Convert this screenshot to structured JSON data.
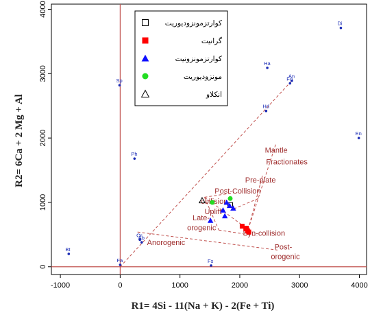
{
  "chart_data": {
    "type": "scatter",
    "xlabel": "R1= 4Si - 11(Na + K) - 2(Fe + Ti)",
    "ylabel": "R2= 6Ca + 2 Mg + Al",
    "xlim": [
      -1150,
      4120
    ],
    "ylim": [
      -120,
      4080
    ],
    "x_ticks": [
      -1000,
      0,
      1000,
      2000,
      3000,
      4000
    ],
    "y_ticks": [
      0,
      1000,
      2000,
      3000,
      4000
    ],
    "x_tick_labels": [
      "-1000",
      "0",
      "1000",
      "2000",
      "3000",
      "4000"
    ],
    "y_tick_labels": [
      "0",
      "1000",
      "2000",
      "3000",
      "4000"
    ],
    "colors": {
      "axis_lines": "#c0504d",
      "region_lines": "#c0504d",
      "reference_points": "#1a2bb5",
      "granite": "#ff0000",
      "quartz_monzonite": "#1010ff",
      "monzodiorite": "#22dd22",
      "region_text": "#a03030"
    },
    "legend": {
      "placement": "top-center",
      "entries": [
        {
          "label": "کوارتزمونزودیوریت",
          "marker": "open-square"
        },
        {
          "label": "گرانیت",
          "marker": "filled-square-red"
        },
        {
          "label": "کوارتزمونزونیت",
          "marker": "filled-triangle-blue"
        },
        {
          "label": "مونزودیوریت",
          "marker": "filled-circle-green"
        },
        {
          "label": "انکلاو",
          "marker": "open-triangle"
        }
      ]
    },
    "reference_points": [
      {
        "label": "Di",
        "x": 3690,
        "y": 3710
      },
      {
        "label": "Ha",
        "x": 2460,
        "y": 3090
      },
      {
        "label": "An",
        "x": 2870,
        "y": 2890
      },
      {
        "label": "Fo",
        "x": 2840,
        "y": 2850
      },
      {
        "label": "Sp",
        "x": -10,
        "y": 2820
      },
      {
        "label": "Hd",
        "x": 2440,
        "y": 2420
      },
      {
        "label": "En",
        "x": 3990,
        "y": 2000
      },
      {
        "label": "Ph",
        "x": 240,
        "y": 1680
      },
      {
        "label": "Ab",
        "x": 360,
        "y": 380
      },
      {
        "label": "Or",
        "x": 330,
        "y": 420
      },
      {
        "label": "Bt",
        "x": -860,
        "y": 200
      },
      {
        "label": "Fa",
        "x": 0,
        "y": 30
      },
      {
        "label": "Fs",
        "x": 1520,
        "y": 20
      }
    ],
    "region_labels": [
      {
        "text": "Mantle",
        "x": 2420,
        "y": 1770
      },
      {
        "text": "Fractionates",
        "x": 2440,
        "y": 1590
      },
      {
        "text": "Pre-plate",
        "x": 2090,
        "y": 1310
      },
      {
        "text": "Post-Collision",
        "x": 1580,
        "y": 1140
      },
      {
        "text": "collision",
        "x": 1350,
        "y": 980
      },
      {
        "text": "Uplift",
        "x": 1410,
        "y": 820
      },
      {
        "text": "Late-",
        "x": 1210,
        "y": 720
      },
      {
        "text": "orogenic",
        "x": 1120,
        "y": 570
      },
      {
        "text": "Syn-collision",
        "x": 2050,
        "y": 480
      },
      {
        "text": "Anorogenic",
        "x": 450,
        "y": 340
      },
      {
        "text": "Post-",
        "x": 2580,
        "y": 270
      },
      {
        "text": "orogenic",
        "x": 2520,
        "y": 120
      }
    ],
    "region_boundaries": [
      [
        [
          0,
          0
        ],
        [
          2860,
          2880
        ]
      ],
      [
        [
          290,
          540
        ],
        [
          2630,
          260
        ]
      ],
      [
        [
          2140,
          580
        ],
        [
          2600,
          1900
        ]
      ],
      [
        [
          2140,
          580
        ],
        [
          2380,
          1420
        ]
      ],
      [
        [
          1900,
          900
        ],
        [
          2310,
          1060
        ]
      ],
      [
        [
          1410,
          1080
        ],
        [
          2140,
          580
        ]
      ],
      [
        [
          1410,
          1080
        ],
        [
          1650,
          570
        ]
      ],
      [
        [
          1650,
          570
        ],
        [
          2290,
          480
        ]
      ],
      [
        [
          1410,
          1080
        ],
        [
          1900,
          1150
        ]
      ]
    ],
    "series": [
      {
        "name": "کوارتزمونزودیوریت",
        "marker": "open-square",
        "points": [
          {
            "x": 1840,
            "y": 960
          }
        ]
      },
      {
        "name": "گرانیت",
        "marker": "filled-square-red",
        "points": [
          {
            "x": 2040,
            "y": 630
          },
          {
            "x": 2100,
            "y": 590
          },
          {
            "x": 2130,
            "y": 560
          },
          {
            "x": 2150,
            "y": 540
          },
          {
            "x": 2110,
            "y": 600
          }
        ]
      },
      {
        "name": "کوارتزمونزونیت",
        "marker": "filled-triangle-blue",
        "points": [
          {
            "x": 1510,
            "y": 720
          },
          {
            "x": 1720,
            "y": 880
          },
          {
            "x": 1780,
            "y": 1000
          },
          {
            "x": 1890,
            "y": 910
          },
          {
            "x": 1750,
            "y": 790
          },
          {
            "x": 1830,
            "y": 950
          }
        ]
      },
      {
        "name": "مونزودیوریت",
        "marker": "filled-circle-green",
        "points": [
          {
            "x": 1840,
            "y": 1060
          },
          {
            "x": 1540,
            "y": 1000
          }
        ]
      },
      {
        "name": "انکلاو",
        "marker": "open-triangle",
        "points": [
          {
            "x": 1370,
            "y": 1030
          }
        ]
      }
    ]
  }
}
